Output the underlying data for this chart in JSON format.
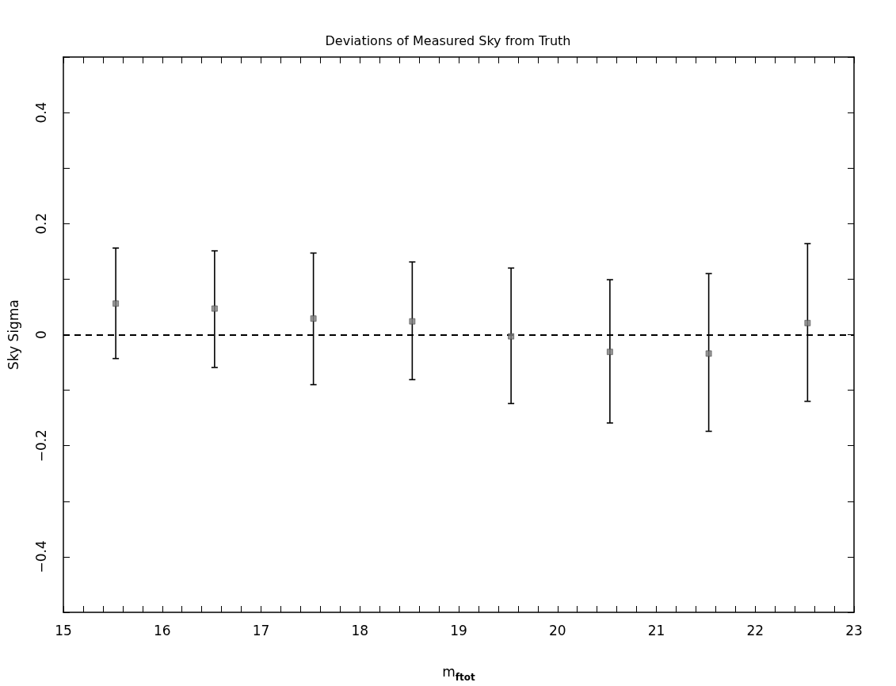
{
  "chart_data": {
    "type": "scatter",
    "title": "Deviations of Measured Sky from Truth",
    "xlabel": "m$_{ftot}$",
    "ylabel": "Sky Sigma",
    "x": [
      15.53,
      16.53,
      17.53,
      18.53,
      19.53,
      20.53,
      21.53,
      22.53
    ],
    "series": [
      {
        "color": "#808080",
        "values": [
          0.056,
          0.047,
          0.029,
          0.024,
          -0.003,
          -0.031,
          -0.034,
          0.021
        ],
        "errors": [
          [
            -0.043,
            0.156
          ],
          [
            -0.059,
            0.151
          ],
          [
            -0.09,
            0.147
          ],
          [
            -0.081,
            0.131
          ],
          [
            -0.124,
            0.12
          ],
          [
            -0.159,
            0.099
          ],
          [
            -0.174,
            0.11
          ],
          [
            -0.12,
            0.164
          ]
        ]
      }
    ],
    "marker": "square",
    "xlim": [
      15,
      23
    ],
    "ylim": [
      -0.5,
      0.5
    ],
    "xticks": [
      15,
      {
        "value": 15.2,
        "label": null
      },
      {
        "value": 15.4,
        "label": null
      },
      {
        "value": 15.6,
        "label": null
      },
      {
        "value": 15.8,
        "label": null
      },
      16,
      {
        "value": 16.2,
        "label": null
      },
      {
        "value": 16.4,
        "label": null
      },
      {
        "value": 16.6,
        "label": null
      },
      {
        "value": 16.8,
        "label": null
      },
      17,
      {
        "value": 17.2,
        "label": null
      },
      {
        "value": 17.4,
        "label": null
      },
      {
        "value": 17.6,
        "label": null
      },
      {
        "value": 17.8,
        "label": null
      },
      18,
      {
        "value": 18.2,
        "label": null
      },
      {
        "value": 18.4,
        "label": null
      },
      {
        "value": 18.6,
        "label": null
      },
      {
        "value": 18.8,
        "label": null
      },
      19,
      {
        "value": 19.2,
        "label": null
      },
      {
        "value": 19.4,
        "label": null
      },
      {
        "value": 19.6,
        "label": null
      },
      {
        "value": 19.8,
        "label": null
      },
      20,
      {
        "value": 20.2,
        "label": null
      },
      {
        "value": 20.4,
        "label": null
      },
      {
        "value": 20.6,
        "label": null
      },
      {
        "value": 20.8,
        "label": null
      },
      21,
      {
        "value": 21.2,
        "label": null
      },
      {
        "value": 21.4,
        "label": null
      },
      {
        "value": 21.6,
        "label": null
      },
      {
        "value": 21.8,
        "label": null
      },
      22,
      {
        "value": 22.2,
        "label": null
      },
      {
        "value": 22.4,
        "label": null
      },
      {
        "value": 22.6,
        "label": null
      },
      {
        "value": 22.8,
        "label": null
      },
      23
    ],
    "yticks": [
      {
        "value": -0.5,
        "label": null
      },
      {
        "value": -0.4,
        "label": "−0.4"
      },
      {
        "value": -0.3,
        "label": null
      },
      {
        "value": -0.2,
        "label": "−0.2"
      },
      {
        "value": -0.1,
        "label": null
      },
      0,
      {
        "value": 0.1,
        "label": null
      },
      0.2,
      {
        "value": 0.3,
        "label": null
      },
      0.4,
      {
        "value": 0.5,
        "label": null
      }
    ],
    "ref_lines": [
      {
        "axis": "y",
        "value": 0,
        "color": "#000000",
        "line_style": "dashed"
      }
    ]
  }
}
